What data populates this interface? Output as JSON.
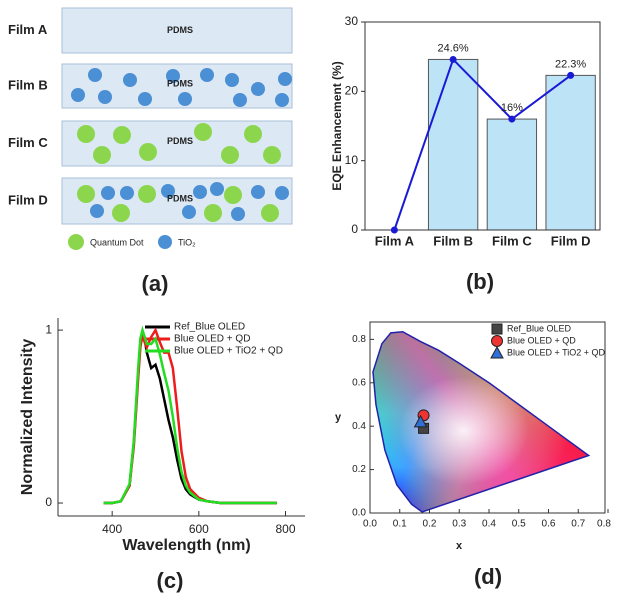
{
  "diagram": {
    "films": [
      {
        "label": "Film A",
        "matrix": "PDMS"
      },
      {
        "label": "Film B",
        "matrix": "PDMS"
      },
      {
        "label": "Film C",
        "matrix": "PDMS"
      },
      {
        "label": "Film D",
        "matrix": "PDMS"
      }
    ],
    "legend": [
      "Quantum Dot",
      "TiO₂"
    ],
    "panel_label": "(a)"
  },
  "chart_data": [
    {
      "type": "bar",
      "panel_label": "(b)",
      "ylabel": "EQE Enhancement (%)",
      "categories": [
        "Film A",
        "Film B",
        "Film C",
        "Film D"
      ],
      "values": [
        0,
        24.6,
        16,
        22.3
      ],
      "value_labels": [
        null,
        "24.6%",
        "16%",
        "22.3%"
      ],
      "color": "#bde3f7",
      "line": true,
      "line_color": "#1a1ad6",
      "ylim": [
        0,
        30
      ],
      "yticks": [
        0,
        10,
        20,
        30
      ]
    },
    {
      "type": "line",
      "panel_label": "(c)",
      "xlabel": "Wavelength (nm)",
      "ylabel": "Normalized Intensity",
      "x": [
        380,
        400,
        420,
        440,
        450,
        460,
        465,
        470,
        475,
        480,
        490,
        500,
        510,
        520,
        530,
        540,
        550,
        560,
        570,
        580,
        600,
        620,
        650,
        700,
        750,
        780
      ],
      "series": [
        {
          "name": "Ref_Blue OLED",
          "color": "#000000",
          "values": [
            0,
            0,
            0.01,
            0.1,
            0.35,
            0.75,
            0.92,
            0.99,
            0.95,
            0.87,
            0.78,
            0.8,
            0.72,
            0.6,
            0.48,
            0.38,
            0.25,
            0.14,
            0.08,
            0.05,
            0.02,
            0.01,
            0,
            0,
            0,
            0
          ]
        },
        {
          "name": "Blue OLED + QD",
          "color": "#ee1c1c",
          "values": [
            0,
            0,
            0.01,
            0.1,
            0.33,
            0.72,
            0.9,
            0.97,
            0.93,
            0.9,
            0.96,
            1.0,
            0.93,
            0.87,
            0.87,
            0.78,
            0.55,
            0.3,
            0.15,
            0.08,
            0.03,
            0.01,
            0,
            0,
            0,
            0
          ]
        },
        {
          "name": "Blue OLED + TiO2 + QD",
          "color": "#22dd22",
          "values": [
            0,
            0,
            0.01,
            0.11,
            0.36,
            0.78,
            0.95,
            1.0,
            0.96,
            0.92,
            0.92,
            0.95,
            0.86,
            0.75,
            0.65,
            0.5,
            0.32,
            0.18,
            0.1,
            0.06,
            0.02,
            0.01,
            0,
            0,
            0,
            0
          ]
        }
      ],
      "xlim": [
        275,
        845
      ],
      "xticks": [
        400,
        600,
        800
      ],
      "ylim": [
        -0.075,
        1.07
      ],
      "yticks": [
        0,
        1
      ]
    },
    {
      "type": "scatter",
      "panel_label": "(d)",
      "xlabel": "x",
      "ylabel": "y",
      "series": [
        {
          "name": "Ref_Blue OLED",
          "color": "#444444",
          "marker": "square",
          "x": [
            0.18
          ],
          "values": [
            0.39
          ]
        },
        {
          "name": "Blue OLED + QD",
          "color": "#ee3333",
          "marker": "circle",
          "x": [
            0.18
          ],
          "values": [
            0.45
          ]
        },
        {
          "name": "Blue OLED + TiO2 + QD",
          "color": "#2f6fd6",
          "marker": "triangle",
          "x": [
            0.17
          ],
          "values": [
            0.42
          ]
        }
      ],
      "xlim": [
        0,
        0.8
      ],
      "xticks": [
        {
          "value": 0,
          "label": "0.0"
        },
        0.1,
        0.2,
        0.3,
        0.4,
        0.5,
        0.6,
        0.7,
        0.8
      ],
      "ylim": [
        0,
        0.88
      ],
      "yticks": [
        {
          "value": 0,
          "label": "0.0"
        },
        0.2,
        0.4,
        0.6,
        0.8
      ]
    }
  ]
}
